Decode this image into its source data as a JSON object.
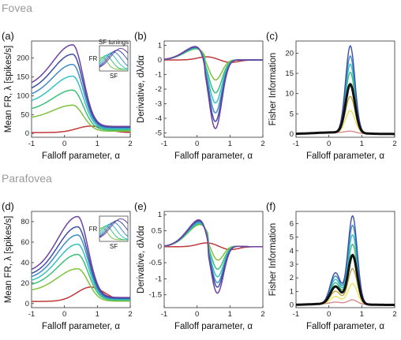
{
  "rows": [
    {
      "title": "Fovea"
    },
    {
      "title": "Parafovea"
    }
  ],
  "colors": [
    "#d98a8a",
    "#ede05a",
    "#b8a83a",
    "#7fc241",
    "#3cbf76",
    "#33c2c2",
    "#3f8cc6",
    "#3c4fa6",
    "#6e42a0"
  ],
  "red_color": "#c0393a",
  "fisher_mean_color": "#111111",
  "inset_labels": {
    "title": "SF tunings",
    "ylabel": "FR",
    "xlabel": "SF"
  },
  "chart_data": [
    {
      "id": "a",
      "panel_label": "(a)",
      "type": "line",
      "xlabel": "Falloff parameter, α",
      "ylabel": "Mean FR, λ [spikes/s]",
      "xlim": [
        -1,
        2
      ],
      "ylim": [
        -10,
        245
      ],
      "xticks": [
        -1,
        0,
        1,
        2
      ],
      "yticks": [
        0,
        50,
        100,
        150,
        200
      ],
      "curve_kind": "rate",
      "peaks": [
        75,
        115,
        152,
        183,
        210,
        235
      ],
      "peak_x": 0.25,
      "ratio_left": 0.52,
      "ratio_right": 0.08,
      "red_amp": 17,
      "red_x": 0.8
    },
    {
      "id": "b",
      "panel_label": "(b)",
      "type": "line",
      "xlabel": "Falloff parameter, α",
      "ylabel": "Derivative, dλ/dα",
      "xlim": [
        -1,
        2
      ],
      "ylim": [
        -5.3,
        1.3
      ],
      "xticks": [
        -1,
        0,
        1,
        2
      ],
      "yticks": [
        1,
        0,
        -1,
        -2,
        -3,
        -4,
        -5
      ],
      "curve_kind": "deriv",
      "mins": [
        -1.6,
        -2.5,
        -3.2,
        -3.9,
        -4.5,
        -5.0
      ],
      "pos_peak": 1.0,
      "pos_x": 0.05,
      "min_x": 0.55,
      "red_amp": 0.22
    },
    {
      "id": "c",
      "panel_label": "(c)",
      "type": "line",
      "xlabel": "Falloff parameter, α",
      "ylabel": "Fisher Information",
      "xlim": [
        -1,
        2
      ],
      "ylim": [
        -0.8,
        23
      ],
      "xticks": [
        -1,
        0,
        1,
        2
      ],
      "yticks": [
        0,
        5,
        10,
        15,
        20
      ],
      "curve_kind": "fisher",
      "fi_peaks": [
        0.4,
        5.5,
        9,
        12,
        15,
        17,
        19,
        21.5
      ],
      "fi_mean": 12,
      "peak_x": 0.65,
      "base": 0.4
    },
    {
      "id": "d",
      "panel_label": "(d)",
      "type": "line",
      "xlabel": "Falloff parameter, α",
      "ylabel": "Mean FR, λ [spikes/s]",
      "xlim": [
        -1,
        2
      ],
      "ylim": [
        -4,
        90
      ],
      "xticks": [
        -1,
        0,
        1,
        2
      ],
      "yticks": [
        0,
        20,
        40,
        60,
        80
      ],
      "curve_kind": "rate",
      "peaks": [
        34,
        48,
        58,
        67,
        75,
        85
      ],
      "peak_x": 0.4,
      "ratio_left": 0.35,
      "ratio_right": 0.07,
      "red_amp": 14,
      "red_x": 0.8
    },
    {
      "id": "e",
      "panel_label": "(e)",
      "type": "line",
      "xlabel": "Falloff parameter, α",
      "ylabel": "Derivative, dλ/dα",
      "xlim": [
        -1,
        2
      ],
      "ylim": [
        -1.9,
        1.1
      ],
      "xticks": [
        -1,
        0,
        1,
        2
      ],
      "yticks": [
        1,
        0.5,
        0,
        -0.5,
        -1,
        -1.5
      ],
      "curve_kind": "deriv",
      "mins": [
        -0.65,
        -0.95,
        -1.2,
        -1.4,
        -1.55,
        -1.75
      ],
      "pos_peak": 0.9,
      "pos_x": 0.15,
      "min_x": 0.6,
      "red_amp": 0.12
    },
    {
      "id": "f",
      "panel_label": "(f)",
      "type": "line",
      "xlabel": "Falloff parameter, α",
      "ylabel": "Fisher Information",
      "xlim": [
        -1,
        2
      ],
      "ylim": [
        -0.2,
        6.9
      ],
      "xticks": [
        -1,
        0,
        1,
        2
      ],
      "yticks": [
        0,
        1,
        2,
        3,
        4,
        5,
        6
      ],
      "curve_kind": "fisher",
      "fi_peaks": [
        0.3,
        1.5,
        2.6,
        3.6,
        4.4,
        5.1,
        5.8,
        6.5
      ],
      "fi_mean": 3.6,
      "peak_x": 0.72,
      "base": 0.1,
      "bump": 1.4
    }
  ]
}
